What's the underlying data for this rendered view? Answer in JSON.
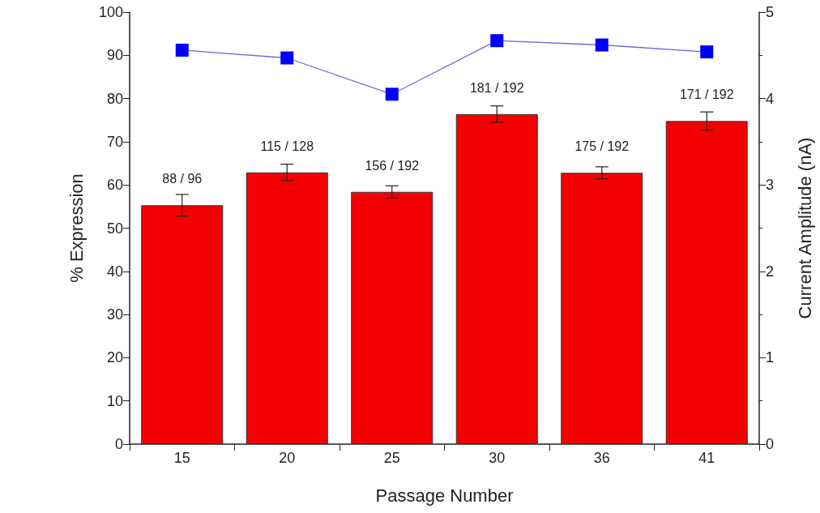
{
  "chart_data": {
    "type": "bar",
    "categories": [
      "15",
      "20",
      "25",
      "30",
      "36",
      "41"
    ],
    "xlabel": "Passage Number",
    "ylabel": "% Expression",
    "y2label": "Current Amplitude (nA)",
    "ylim": [
      0,
      100
    ],
    "yticks": [
      0,
      10,
      20,
      30,
      40,
      50,
      60,
      70,
      80,
      90,
      100
    ],
    "y2lim": [
      0,
      5
    ],
    "y2ticks": [
      0,
      1,
      2,
      3,
      4,
      5
    ],
    "grid": false,
    "annotations": [
      {
        "text": "88 / 96",
        "x": "15",
        "y": 55.3
      },
      {
        "text": "115 / 128",
        "x": "20",
        "y": 62.9
      },
      {
        "text": "156 / 192",
        "x": "25",
        "y": 58.4
      },
      {
        "text": "181 / 192",
        "x": "30",
        "y": 76.4
      },
      {
        "text": "175 / 192",
        "x": "36",
        "y": 62.8
      },
      {
        "text": "171 / 192",
        "x": "41",
        "y": 74.8
      }
    ],
    "series": [
      {
        "color": "#f50000",
        "values": [
          55.3,
          62.9,
          58.4,
          76.4,
          62.8,
          74.8
        ],
        "errors": [
          2.5,
          1.9,
          1.4,
          1.9,
          1.4,
          2.1
        ]
      },
      {
        "type": "line",
        "axis": "y2",
        "color": "#0000ff",
        "marker": "square",
        "line_style": "solid",
        "values": [
          4.56,
          4.47,
          4.05,
          4.67,
          4.62,
          4.54
        ]
      }
    ]
  }
}
